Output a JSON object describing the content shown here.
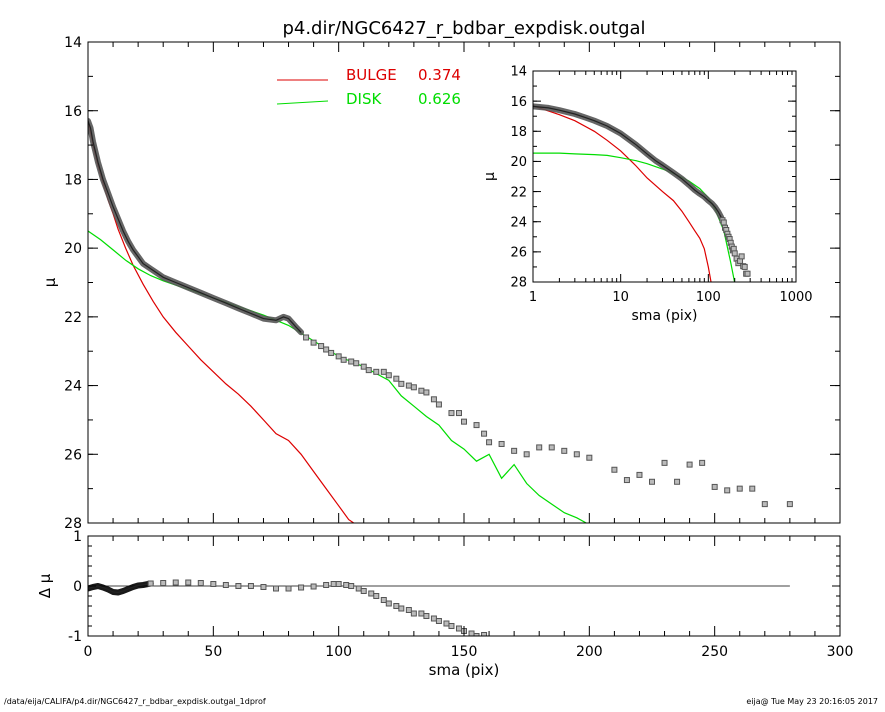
{
  "footer": {
    "left": "/data/eija/CALIFA/p4.dir/NGC6427_r_bdbar_expdisk.outgal_1dprof",
    "right": "eija@  Tue May 23 20:16:05 2017"
  },
  "colors": {
    "bulge": "#dd0000",
    "disk": "#00dd00",
    "data": "#555555",
    "axes": "#000000"
  },
  "chart_data": [
    {
      "id": "main",
      "type": "line",
      "title": "p4.dir/NGC6427_r_bdbar_expdisk.outgal",
      "xlabel": "",
      "ylabel": "μ",
      "xlim": [
        0,
        300
      ],
      "ylim": [
        28,
        14
      ],
      "y_reversed": true,
      "yticks": [
        14,
        16,
        18,
        20,
        22,
        24,
        26,
        28
      ],
      "legend": {
        "placement": "top-center",
        "entries": [
          {
            "label": "BULGE",
            "value": "0.374",
            "color": "#dd0000"
          },
          {
            "label": "DISK",
            "value": "0.626",
            "color": "#00dd00"
          }
        ]
      },
      "series": [
        {
          "name": "BULGE",
          "style": "line",
          "color": "#dd0000",
          "x": [
            0,
            2,
            4,
            6,
            8,
            10,
            12,
            15,
            18,
            22,
            26,
            30,
            35,
            40,
            45,
            50,
            55,
            60,
            65,
            70,
            75,
            80,
            85,
            90,
            95,
            100,
            104,
            108
          ],
          "y": [
            16.3,
            17.0,
            17.6,
            18.1,
            18.6,
            19.0,
            19.45,
            20.0,
            20.5,
            21.05,
            21.55,
            22.0,
            22.45,
            22.85,
            23.25,
            23.6,
            23.95,
            24.25,
            24.6,
            25.0,
            25.4,
            25.6,
            26.0,
            26.5,
            27.0,
            27.5,
            27.9,
            28.1
          ]
        },
        {
          "name": "DISK",
          "style": "line",
          "color": "#00dd00",
          "x": [
            0,
            5,
            10,
            15,
            20,
            25,
            30,
            40,
            50,
            60,
            70,
            80,
            90,
            100,
            110,
            120,
            125,
            130,
            135,
            140,
            145,
            150,
            155,
            160,
            165,
            170,
            175,
            180,
            185,
            190,
            195,
            200
          ],
          "y": [
            19.5,
            19.75,
            20.05,
            20.35,
            20.6,
            20.8,
            20.95,
            21.2,
            21.45,
            21.7,
            21.95,
            22.25,
            22.7,
            23.15,
            23.45,
            23.85,
            24.3,
            24.6,
            24.9,
            25.15,
            25.6,
            25.85,
            26.2,
            26.0,
            26.7,
            26.3,
            26.85,
            27.2,
            27.45,
            27.7,
            27.85,
            28.05
          ]
        },
        {
          "name": "",
          "style": "band",
          "color": "#555555",
          "x": [
            0,
            1,
            2,
            3,
            4,
            5,
            6,
            8,
            10,
            12,
            14,
            16,
            18,
            20,
            22,
            25,
            28,
            30,
            35,
            40,
            45,
            50,
            55,
            60,
            65,
            70,
            75,
            78,
            80,
            83,
            85
          ],
          "y": [
            16.3,
            16.5,
            16.9,
            17.2,
            17.5,
            17.75,
            18.0,
            18.4,
            18.8,
            19.15,
            19.5,
            19.8,
            20.05,
            20.25,
            20.45,
            20.6,
            20.75,
            20.85,
            21.0,
            21.15,
            21.3,
            21.45,
            21.6,
            21.75,
            21.9,
            22.05,
            22.1,
            22.0,
            22.05,
            22.3,
            22.45
          ]
        },
        {
          "name": "",
          "style": "points",
          "color": "#555555",
          "x": [
            87,
            90,
            93,
            95,
            97,
            100,
            102,
            105,
            107,
            110,
            112,
            115,
            118,
            120,
            123,
            125,
            128,
            130,
            133,
            135,
            138,
            140,
            145,
            148,
            150,
            155,
            158,
            160,
            165,
            170,
            175,
            180,
            185,
            190,
            195,
            200,
            210,
            215,
            220,
            225,
            230,
            235,
            240,
            245,
            250,
            255,
            260,
            265,
            270,
            280
          ],
          "y": [
            22.6,
            22.75,
            22.85,
            22.95,
            23.05,
            23.15,
            23.25,
            23.3,
            23.35,
            23.45,
            23.55,
            23.6,
            23.6,
            23.7,
            23.8,
            23.95,
            24.0,
            24.05,
            24.15,
            24.2,
            24.4,
            24.55,
            24.8,
            24.8,
            25.05,
            25.15,
            25.4,
            25.65,
            25.7,
            25.9,
            26.0,
            25.8,
            25.8,
            25.9,
            26.0,
            26.1,
            26.45,
            26.75,
            26.6,
            26.8,
            26.25,
            26.8,
            26.3,
            26.25,
            26.95,
            27.05,
            27.0,
            27.0,
            27.45,
            27.45
          ]
        }
      ]
    },
    {
      "id": "residual",
      "type": "scatter",
      "title": "",
      "xlabel": "sma (pix)",
      "ylabel": "Δ μ",
      "xlim": [
        0,
        300
      ],
      "ylim": [
        -1,
        1
      ],
      "xticks": [
        0,
        50,
        100,
        150,
        200,
        250,
        300
      ],
      "yticks": [
        1,
        0,
        -1
      ],
      "reference_line": 0,
      "series": [
        {
          "name": "",
          "style": "band",
          "color": "#000000",
          "x": [
            0,
            2,
            4,
            6,
            8,
            10,
            12,
            14,
            16,
            18,
            20,
            22,
            25
          ],
          "y": [
            -0.05,
            -0.02,
            0.0,
            -0.03,
            -0.07,
            -0.12,
            -0.13,
            -0.1,
            -0.06,
            -0.02,
            0.01,
            0.02,
            0.05
          ]
        },
        {
          "name": "",
          "style": "points",
          "color": "#555555",
          "x": [
            25,
            30,
            35,
            40,
            45,
            50,
            55,
            60,
            65,
            70,
            75,
            80,
            85,
            90,
            95,
            98,
            100,
            103,
            105,
            108,
            110,
            113,
            115,
            118,
            120,
            123,
            125,
            128,
            130,
            133,
            135,
            138,
            140,
            143,
            145,
            148,
            150,
            153,
            155,
            158
          ],
          "y": [
            0.05,
            0.06,
            0.07,
            0.07,
            0.06,
            0.04,
            0.02,
            0.0,
            0.0,
            -0.02,
            -0.05,
            -0.05,
            -0.03,
            -0.01,
            0.02,
            0.04,
            0.04,
            0.02,
            0.0,
            -0.05,
            -0.1,
            -0.15,
            -0.2,
            -0.28,
            -0.35,
            -0.4,
            -0.45,
            -0.48,
            -0.55,
            -0.55,
            -0.6,
            -0.65,
            -0.7,
            -0.75,
            -0.8,
            -0.85,
            -0.9,
            -0.95,
            -1.0,
            -0.98
          ]
        }
      ]
    },
    {
      "id": "inset",
      "type": "line",
      "title": "",
      "xlabel": "sma (pix)",
      "ylabel": "μ",
      "x_scale": "log",
      "xlim": [
        1,
        1000
      ],
      "ylim": [
        28,
        14
      ],
      "y_reversed": true,
      "xticks": [
        1,
        10,
        100,
        1000
      ],
      "xtick_labels": [
        "1",
        "10",
        "100",
        "1000"
      ],
      "yticks": [
        14,
        16,
        18,
        20,
        22,
        24,
        26,
        28
      ],
      "series": [
        {
          "name": "BULGE",
          "style": "line",
          "color": "#dd0000",
          "x": [
            1,
            2,
            3,
            5,
            7,
            10,
            15,
            20,
            30,
            40,
            50,
            60,
            70,
            80,
            90,
            100,
            108
          ],
          "y": [
            16.3,
            16.9,
            17.3,
            18.0,
            18.6,
            19.3,
            20.3,
            21.1,
            22.0,
            22.6,
            23.3,
            24.0,
            24.6,
            25.1,
            25.8,
            27.0,
            28.1
          ]
        },
        {
          "name": "DISK",
          "style": "line",
          "color": "#00dd00",
          "x": [
            1,
            2,
            3,
            5,
            7,
            10,
            15,
            20,
            30,
            40,
            50,
            60,
            80,
            100,
            120,
            150,
            180,
            200
          ],
          "y": [
            19.45,
            19.45,
            19.5,
            19.55,
            19.6,
            19.75,
            19.95,
            20.15,
            20.5,
            20.8,
            21.05,
            21.3,
            21.8,
            22.4,
            23.2,
            24.6,
            26.7,
            28.05
          ]
        },
        {
          "name": "",
          "style": "band",
          "color": "#555555",
          "x": [
            1,
            1.5,
            2,
            3,
            4,
            5,
            7,
            10,
            15,
            20,
            25,
            30,
            40,
            50,
            60,
            70,
            80,
            90,
            100,
            110,
            120,
            130,
            140
          ],
          "y": [
            16.35,
            16.45,
            16.6,
            16.85,
            17.1,
            17.3,
            17.65,
            18.15,
            18.9,
            19.5,
            19.95,
            20.25,
            20.75,
            21.15,
            21.55,
            21.9,
            22.15,
            22.35,
            22.6,
            22.8,
            23.05,
            23.35,
            23.7
          ]
        },
        {
          "name": "",
          "style": "points",
          "color": "#555555",
          "x": [
            145,
            150,
            155,
            160,
            165,
            170,
            175,
            180,
            185,
            190,
            195,
            200,
            210,
            220,
            230,
            240,
            250,
            260,
            270,
            280
          ],
          "y": [
            23.9,
            24.05,
            24.4,
            24.55,
            24.8,
            25.0,
            25.15,
            25.4,
            25.65,
            25.9,
            25.8,
            26.1,
            26.45,
            26.75,
            26.6,
            26.3,
            26.95,
            27.0,
            27.45,
            27.45
          ]
        }
      ]
    }
  ]
}
